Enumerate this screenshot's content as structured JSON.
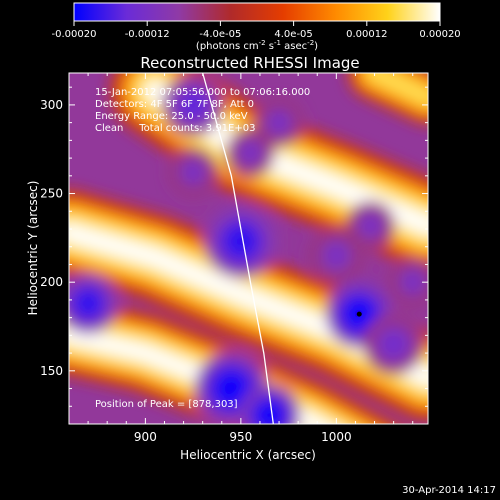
{
  "chart_data": {
    "type": "heatmap",
    "title": "Reconstructed RHESSI Image",
    "colorbar": {
      "min": -0.0002,
      "max": 0.0002,
      "tick_labels": [
        "-0.00020",
        "-0.00012",
        "-4.0e-05",
        "4.0e-05",
        "0.00012",
        "0.00020"
      ],
      "tick_values": [
        -0.0002,
        -0.00012,
        -4e-05,
        4e-05,
        0.00012,
        0.0002
      ],
      "units_parts": [
        "(photons cm",
        "-2",
        " s",
        "-1",
        " asec",
        "-2",
        ")"
      ],
      "stops": [
        "#0000ff",
        "#6a2bd8",
        "#8f3aa6",
        "#b02a2a",
        "#e53d00",
        "#ff8a00",
        "#ffd21a",
        "#ffffff"
      ]
    },
    "xlabel": "Heliocentric X (arcsec)",
    "ylabel": "Heliocentric Y (arcsec)",
    "xlim": [
      860,
      1048
    ],
    "ylim": [
      120,
      318
    ],
    "xticks": [
      900,
      950,
      1000
    ],
    "yticks": [
      150,
      200,
      250,
      300
    ],
    "info_lines": [
      "15-Jan-2012 07:05:56.000 to 07:06:16.000",
      "Detectors: 4F 5F 6F 7F 8F, Att 0",
      "Energy Range: 25.0 - 50.0 keV",
      "Clean     Total counts: 3.91E+03"
    ],
    "peak_text": "Position of Peak = [878,303]",
    "peak_position": [
      878,
      303
    ],
    "limb_curve": [
      [
        930,
        318
      ],
      [
        945,
        260
      ],
      [
        955,
        200
      ],
      [
        962,
        160
      ],
      [
        967,
        120
      ]
    ],
    "bright_bands": [
      {
        "points": [
          [
            860,
            170
          ],
          [
            900,
            160
          ],
          [
            940,
            143
          ],
          [
            985,
            122
          ],
          [
            1048,
            85
          ]
        ],
        "width": 22,
        "intensity": 0.0002
      },
      {
        "points": [
          [
            860,
            228
          ],
          [
            905,
            214
          ],
          [
            950,
            193
          ],
          [
            1000,
            172
          ],
          [
            1048,
            146
          ]
        ],
        "width": 24,
        "intensity": 0.0002
      },
      {
        "points": [
          [
            905,
            308
          ],
          [
            950,
            275
          ],
          [
            1000,
            254
          ],
          [
            1048,
            232
          ]
        ],
        "width": 25,
        "intensity": 0.0002
      },
      {
        "points": [
          [
            1020,
            318
          ],
          [
            1048,
            304
          ]
        ],
        "width": 15,
        "intensity": 0.00016
      }
    ],
    "dark_blobs": [
      {
        "x": 870,
        "y": 188,
        "r": 10,
        "intensity": -0.00018
      },
      {
        "x": 925,
        "y": 300,
        "r": 10,
        "intensity": -0.00015
      },
      {
        "x": 955,
        "y": 273,
        "r": 8,
        "intensity": -0.00012
      },
      {
        "x": 970,
        "y": 290,
        "r": 8,
        "intensity": -0.00012
      },
      {
        "x": 925,
        "y": 262,
        "r": 8,
        "intensity": -0.00012
      },
      {
        "x": 950,
        "y": 223,
        "r": 12,
        "intensity": -0.00018
      },
      {
        "x": 1000,
        "y": 215,
        "r": 9,
        "intensity": -0.00012
      },
      {
        "x": 1018,
        "y": 232,
        "r": 8,
        "intensity": -0.00012
      },
      {
        "x": 1012,
        "y": 182,
        "r": 11,
        "intensity": -0.0002
      },
      {
        "x": 945,
        "y": 140,
        "r": 12,
        "intensity": -0.0002
      },
      {
        "x": 965,
        "y": 125,
        "r": 10,
        "intensity": -0.0002
      },
      {
        "x": 1030,
        "y": 165,
        "r": 10,
        "intensity": -0.00013
      },
      {
        "x": 1040,
        "y": 200,
        "r": 8,
        "intensity": -0.00012
      }
    ],
    "background_intensity": -8e-05,
    "grid": false,
    "legend": "none"
  },
  "footer": {
    "timestamp": "30-Apr-2014 14:17"
  }
}
